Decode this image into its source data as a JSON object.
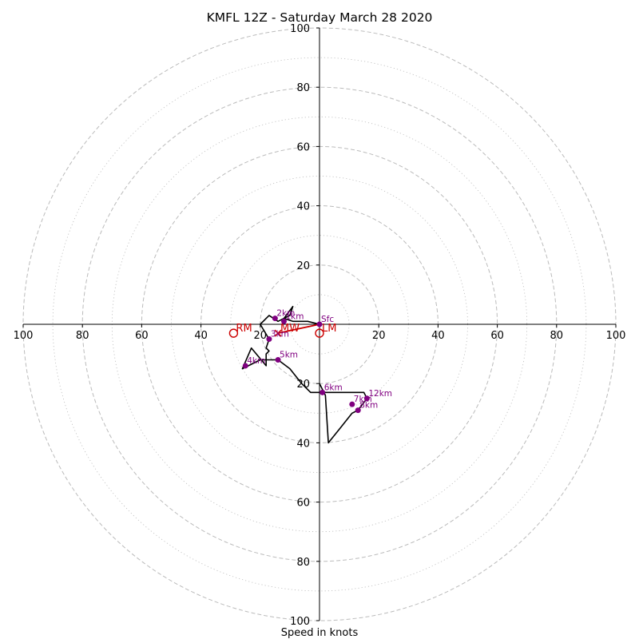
{
  "chart_data": {
    "type": "hodograph",
    "title": "KMFL 12Z - Saturday March 28 2020",
    "xlabel": "Speed in knots",
    "units": "knots",
    "max_speed": 100,
    "ring_speeds": [
      20,
      40,
      60,
      80,
      100
    ],
    "minor_ring_speeds": [
      10,
      30,
      50,
      70,
      90
    ],
    "tick_labels": [
      "20",
      "40",
      "60",
      "80",
      "100"
    ],
    "colors": {
      "trace": "#000000",
      "points": "#800080",
      "motion": "#cc0000",
      "grid": "#bbbbbb",
      "axes": "#000000"
    },
    "trace": [
      [
        0,
        0
      ],
      [
        -4,
        1
      ],
      [
        -9,
        1
      ],
      [
        -12,
        2
      ],
      [
        -9,
        6
      ],
      [
        -10,
        3
      ],
      [
        -14,
        1
      ],
      [
        -17,
        3
      ],
      [
        -20,
        0
      ],
      [
        -17,
        -5
      ],
      [
        -18,
        -8
      ],
      [
        -17,
        -9
      ],
      [
        -18,
        -10
      ],
      [
        -18,
        -14
      ],
      [
        -23,
        -8
      ],
      [
        -26,
        -15
      ],
      [
        -24,
        -14
      ],
      [
        -20,
        -12
      ],
      [
        -17,
        -12
      ],
      [
        -14,
        -12
      ],
      [
        -10,
        -15
      ],
      [
        -6,
        -20
      ],
      [
        -3,
        -23
      ],
      [
        1,
        -23
      ],
      [
        8,
        -23
      ],
      [
        15,
        -23
      ],
      [
        16,
        -25
      ],
      [
        13,
        -29
      ],
      [
        11,
        -30
      ],
      [
        7,
        -35
      ],
      [
        3,
        -40
      ],
      [
        2,
        -24
      ],
      [
        0,
        -20
      ]
    ],
    "levels": [
      {
        "label": "Sfc",
        "u": 0,
        "v": 0
      },
      {
        "label": "1km",
        "u": -12,
        "v": 1
      },
      {
        "label": "2km",
        "u": -15,
        "v": 2
      },
      {
        "label": "3km",
        "u": -17,
        "v": -5
      },
      {
        "label": "4km",
        "u": -25,
        "v": -14
      },
      {
        "label": "5km",
        "u": -14,
        "v": -12
      },
      {
        "label": "6km",
        "u": 1,
        "v": -23
      },
      {
        "label": "7km",
        "u": 11,
        "v": -27
      },
      {
        "label": "8km",
        "u": 13,
        "v": -29
      },
      {
        "label": "12km",
        "u": 16,
        "v": -25
      }
    ],
    "storm_motion": [
      {
        "label": "RM",
        "u": -29,
        "v": -3
      },
      {
        "label": "LM",
        "u": 0,
        "v": -3
      },
      {
        "label": "MW",
        "u": -14,
        "v": -3
      }
    ],
    "shear_vector": {
      "from": [
        0,
        0
      ],
      "to": [
        -14,
        -3
      ]
    }
  }
}
